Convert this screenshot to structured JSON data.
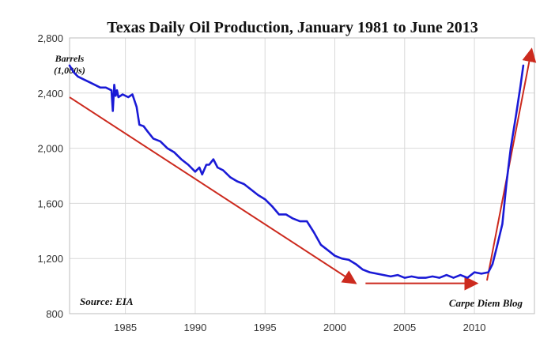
{
  "chart_data": {
    "type": "line",
    "title": "Texas Daily Oil Production, January 1981 to June 2013",
    "ylabel": "Barrels",
    "ylabel_sub": "(1,000s)",
    "xlabel": "",
    "source": "Source: EIA",
    "credit": "Carpe Diem Blog",
    "x_ticks": [
      "1985",
      "1990",
      "1995",
      "2000",
      "2005",
      "2010"
    ],
    "y_ticks": [
      "800",
      "1,200",
      "1,600",
      "2,000",
      "2,400",
      "2,800"
    ],
    "xlim": [
      1981,
      2014.3
    ],
    "ylim": [
      800,
      2800
    ],
    "grid": true,
    "series": [
      {
        "color": "#1a1ad6",
        "x": [
          1981.0,
          1981.3,
          1981.6,
          1982.0,
          1982.4,
          1982.8,
          1983.2,
          1983.6,
          1984.0,
          1984.1,
          1984.2,
          1984.3,
          1984.4,
          1984.5,
          1984.8,
          1985.2,
          1985.5,
          1985.8,
          1986.0,
          1986.3,
          1986.6,
          1987.0,
          1987.5,
          1988.0,
          1988.5,
          1989.0,
          1989.5,
          1990.0,
          1990.3,
          1990.5,
          1990.8,
          1991.0,
          1991.3,
          1991.6,
          1992.0,
          1992.5,
          1993.0,
          1993.5,
          1994.0,
          1994.5,
          1995.0,
          1995.5,
          1996.0,
          1996.5,
          1997.0,
          1997.5,
          1998.0,
          1998.5,
          1999.0,
          1999.5,
          2000.0,
          2000.5,
          2001.0,
          2001.5,
          2002.0,
          2002.5,
          2003.0,
          2003.5,
          2004.0,
          2004.5,
          2005.0,
          2005.5,
          2006.0,
          2006.5,
          2007.0,
          2007.5,
          2008.0,
          2008.5,
          2009.0,
          2009.5,
          2010.0,
          2010.5,
          2011.0,
          2011.3,
          2011.6,
          2012.0,
          2012.3,
          2012.6,
          2013.0,
          2013.3,
          2013.5
        ],
        "values": [
          2600,
          2550,
          2520,
          2500,
          2480,
          2460,
          2440,
          2440,
          2420,
          2270,
          2460,
          2380,
          2420,
          2370,
          2390,
          2370,
          2390,
          2300,
          2170,
          2160,
          2120,
          2070,
          2050,
          2000,
          1970,
          1920,
          1880,
          1830,
          1860,
          1810,
          1880,
          1880,
          1920,
          1860,
          1840,
          1790,
          1760,
          1740,
          1700,
          1660,
          1630,
          1580,
          1520,
          1520,
          1490,
          1470,
          1470,
          1390,
          1300,
          1260,
          1220,
          1200,
          1190,
          1160,
          1120,
          1100,
          1090,
          1080,
          1070,
          1080,
          1060,
          1070,
          1060,
          1060,
          1070,
          1060,
          1080,
          1060,
          1080,
          1060,
          1100,
          1090,
          1100,
          1160,
          1280,
          1450,
          1750,
          2000,
          2250,
          2450,
          2600
        ]
      }
    ],
    "trend_arrows": [
      {
        "color": "#cc2a1e",
        "x1": 1981.0,
        "y1": 2370,
        "x2": 2001.5,
        "y2": 1020
      },
      {
        "color": "#cc2a1e",
        "x1": 2002.2,
        "y1": 1020,
        "x2": 2010.2,
        "y2": 1020
      },
      {
        "color": "#cc2a1e",
        "x1": 2010.9,
        "y1": 1040,
        "x2": 2014.1,
        "y2": 2720
      }
    ]
  }
}
